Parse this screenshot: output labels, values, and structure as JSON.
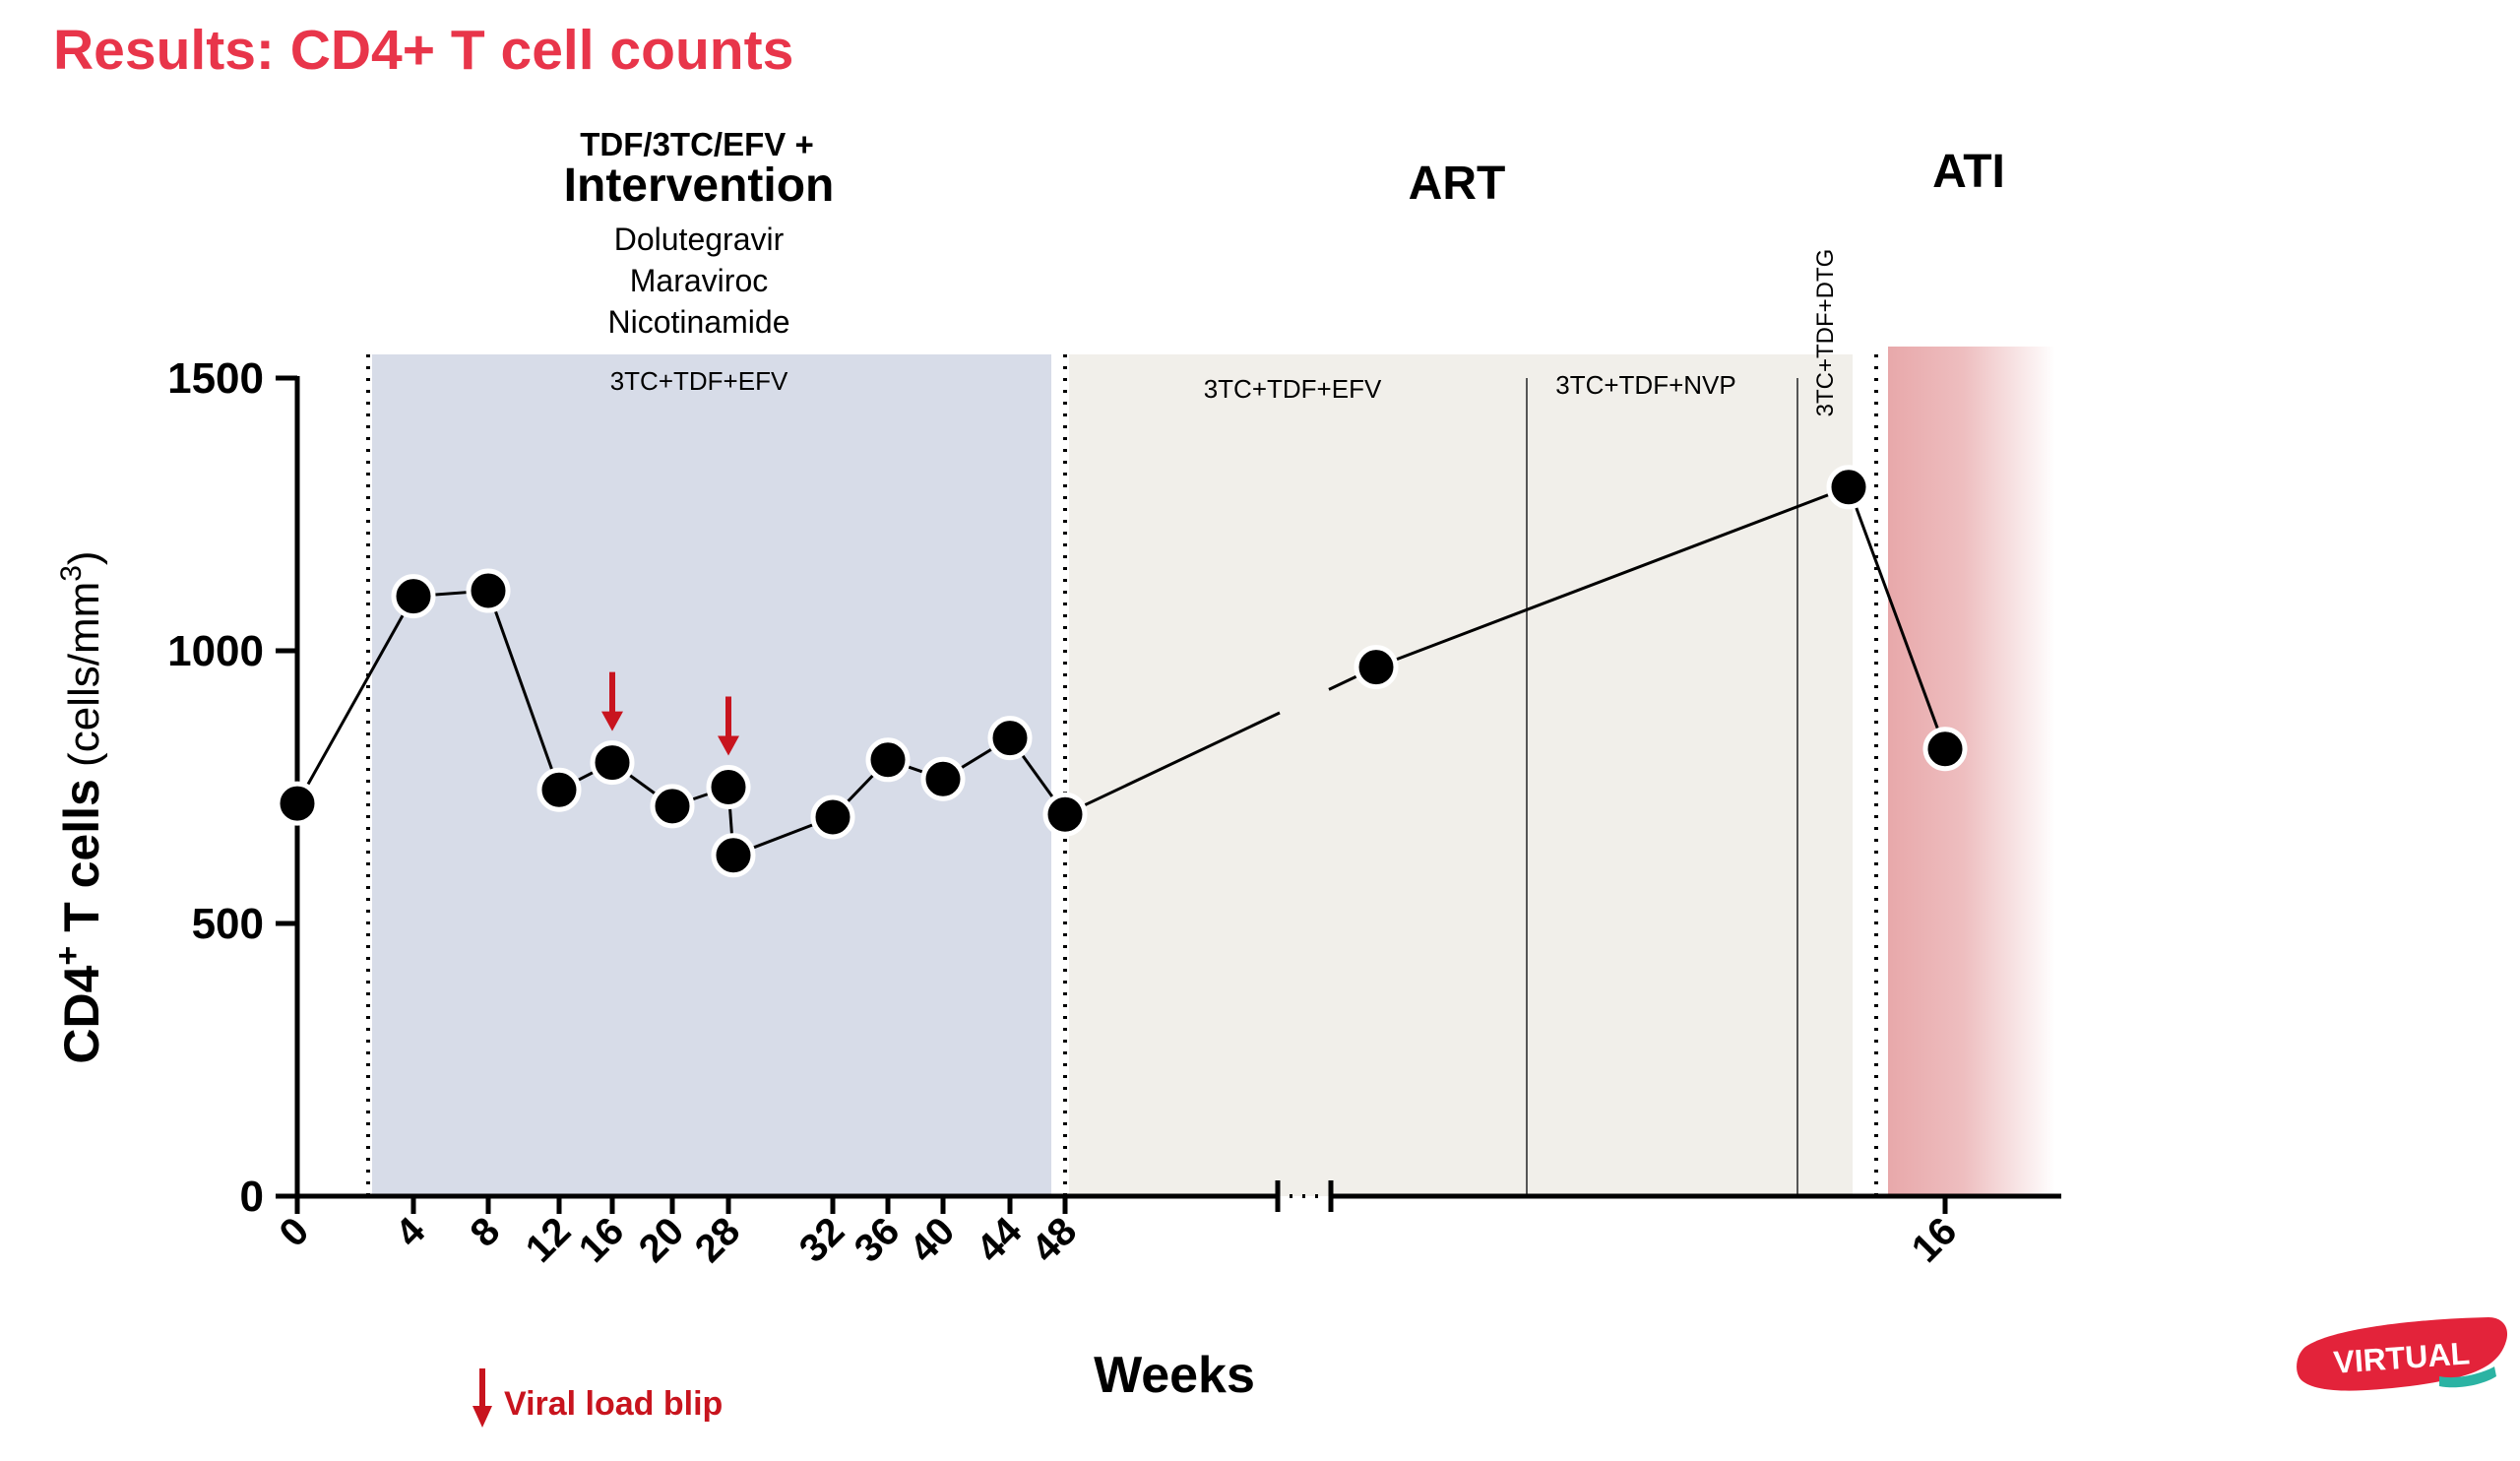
{
  "slide": {
    "title": "Results: CD4+ T cell counts"
  },
  "colors": {
    "title": "#e8354a",
    "intervention_band": "#d7dce8",
    "art_band": "#f1efea",
    "ati_band": "#e8a8aa",
    "arrow": "#c8141e",
    "line": "#000000",
    "marker": "#000000"
  },
  "phases": {
    "intervention_prefix": "TDF/3TC/EFV +",
    "intervention": "Intervention",
    "intervention_drugs": [
      "Dolutegravir",
      "Maraviroc",
      "Nicotinamide"
    ],
    "art": "ART",
    "ati": "ATI"
  },
  "regimens": {
    "r1": "3TC+TDF+EFV",
    "r2": "3TC+TDF+EFV",
    "r3": "3TC+TDF+NVP",
    "r4": "3TC+TDF+DTG"
  },
  "legend": {
    "blip_label": "Viral load blip"
  },
  "logo": {
    "text": "VIRTUAL"
  },
  "chart_data": {
    "type": "line",
    "xlabel": "Weeks",
    "ylabel_main": "CD4",
    "ylabel_sup": "+",
    "ylabel_rest": " T cells",
    "ylabel_unit": "(cells/mm",
    "ylabel_unit_sup": "3",
    "ylabel_unit_end": ")",
    "ylim": [
      0,
      1500
    ],
    "yticks": [
      0,
      500,
      1000,
      1500
    ],
    "xticks": [
      "0",
      "4",
      "8",
      "12",
      "16",
      "20",
      "28",
      "32",
      "36",
      "40",
      "44",
      "48",
      "16"
    ],
    "axis_break": true,
    "series": [
      {
        "points": [
          {
            "x": "0",
            "y": 720
          },
          {
            "x": "4",
            "y": 1100
          },
          {
            "x": "8",
            "y": 1110
          },
          {
            "x": "12",
            "y": 745
          },
          {
            "x": "16",
            "y": 795
          },
          {
            "x": "20",
            "y": 715
          },
          {
            "x": "28",
            "y": 750
          },
          {
            "x": "28",
            "y": 625
          },
          {
            "x": "32",
            "y": 695
          },
          {
            "x": "36",
            "y": 800
          },
          {
            "x": "40",
            "y": 765
          },
          {
            "x": "44",
            "y": 840
          },
          {
            "x": "48",
            "y": 700
          },
          {
            "x": "",
            "y": 970
          },
          {
            "x": "",
            "y": 1300
          },
          {
            "x": "16",
            "y": 820
          }
        ]
      }
    ],
    "viral_load_blips": [
      "16",
      "28"
    ]
  }
}
